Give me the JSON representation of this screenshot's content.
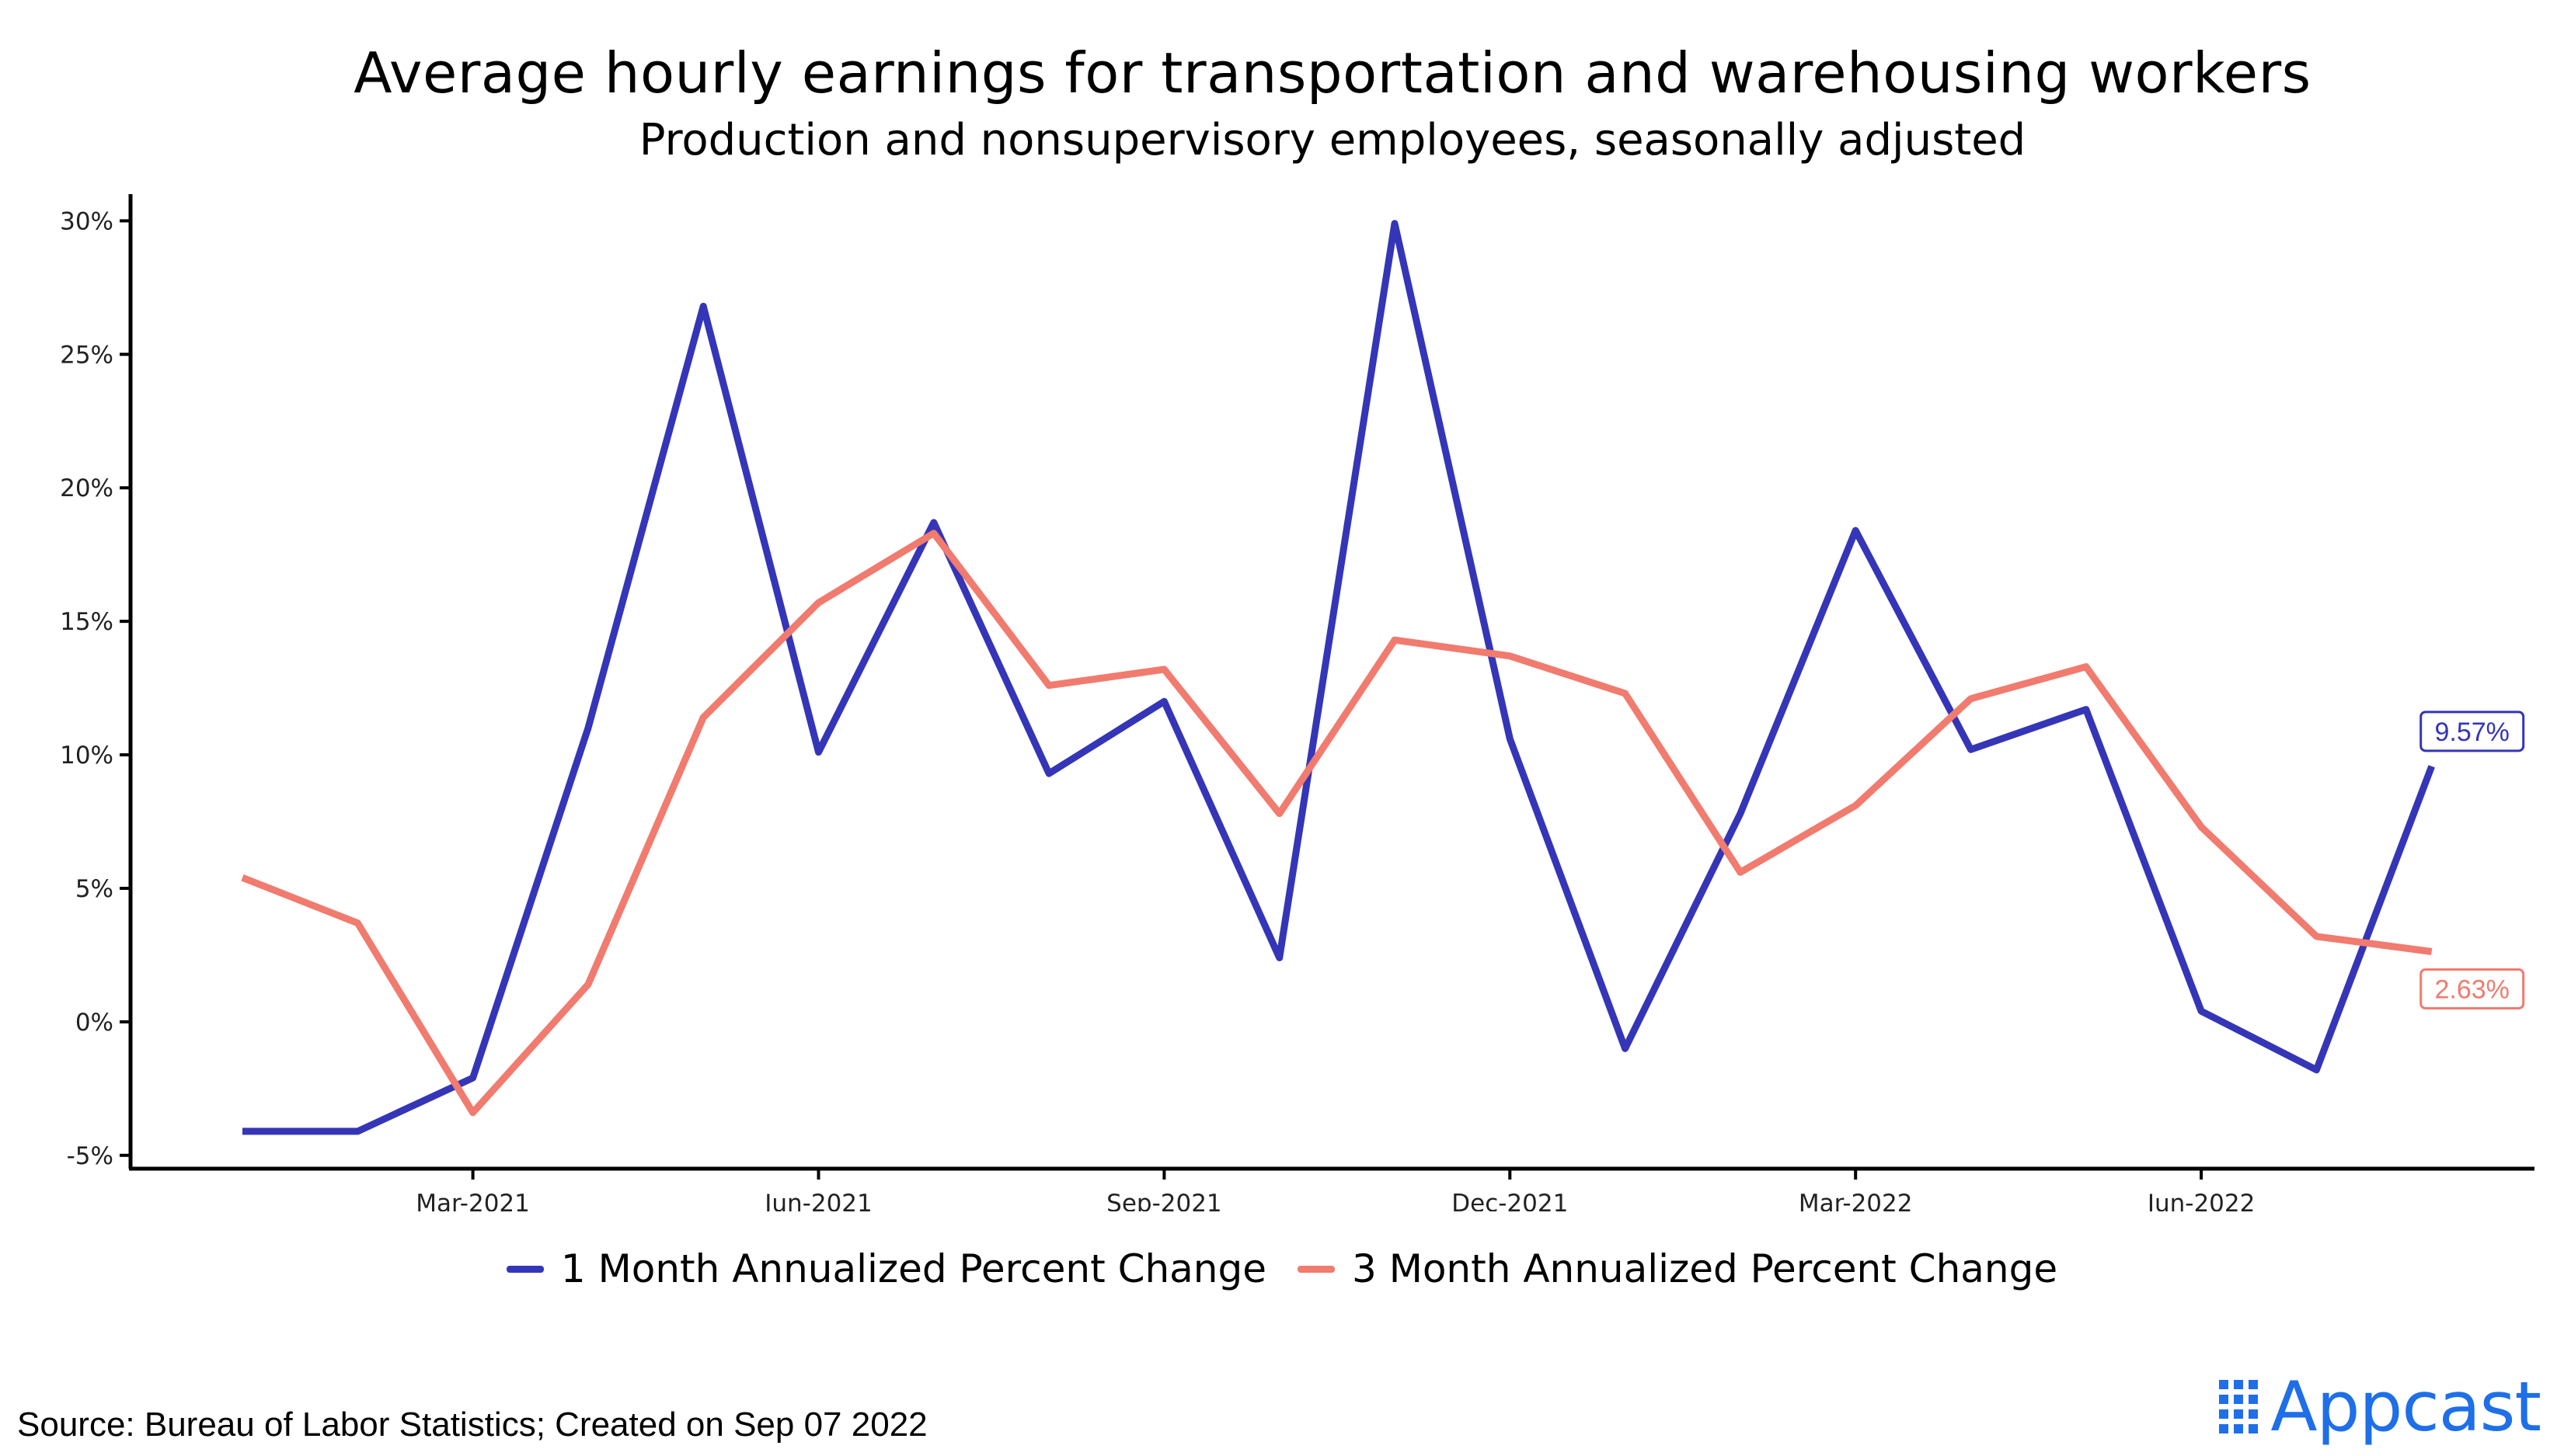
{
  "header": {
    "title": "Average hourly earnings for transportation and warehousing workers",
    "subtitle": "Production and nonsupervisory employees, seasonally adjusted"
  },
  "footer": {
    "source": "Source: Bureau of Labor Statistics; Created on Sep 07 2022",
    "brand": "Appcast"
  },
  "colors": {
    "series1": "#3535b8",
    "series2": "#f07b6e",
    "brand": "#1e6fe8"
  },
  "chart_data": {
    "type": "line",
    "title": "Average hourly earnings for transportation and warehousing workers",
    "subtitle": "Production and nonsupervisory employees, seasonally adjusted",
    "xlabel": "",
    "ylabel": "",
    "x": [
      "2021-01",
      "2021-02",
      "2021-03",
      "2021-04",
      "2021-05",
      "2021-06",
      "2021-07",
      "2021-08",
      "2021-09",
      "2021-10",
      "2021-11",
      "2021-12",
      "2022-01",
      "2022-02",
      "2022-03",
      "2022-04",
      "2022-05",
      "2022-06",
      "2022-07",
      "2022-08"
    ],
    "x_ticks": [
      "Mar-2021",
      "Jun-2021",
      "Sep-2021",
      "Dec-2021",
      "Mar-2022",
      "Jun-2022"
    ],
    "y_ticks": [
      "-5%",
      "0%",
      "5%",
      "10%",
      "15%",
      "20%",
      "25%",
      "30%"
    ],
    "ylim": [
      -5.5,
      31
    ],
    "grid": false,
    "legend_position": "bottom",
    "series": [
      {
        "name": "1 Month Annualized Percent Change",
        "values": [
          -4.1,
          -4.1,
          -2.1,
          11.0,
          26.8,
          10.1,
          18.7,
          9.3,
          12.0,
          2.4,
          29.9,
          10.6,
          -1.0,
          7.8,
          18.4,
          10.2,
          11.7,
          0.4,
          -1.8,
          9.57
        ],
        "end_label": "9.57%"
      },
      {
        "name": "3 Month Annualized Percent Change",
        "values": [
          5.4,
          3.7,
          -3.4,
          1.4,
          11.4,
          15.7,
          18.3,
          12.6,
          13.2,
          7.8,
          14.3,
          13.7,
          12.3,
          5.6,
          8.1,
          12.1,
          13.3,
          7.3,
          3.2,
          2.63
        ],
        "end_label": "2.63%"
      }
    ]
  }
}
